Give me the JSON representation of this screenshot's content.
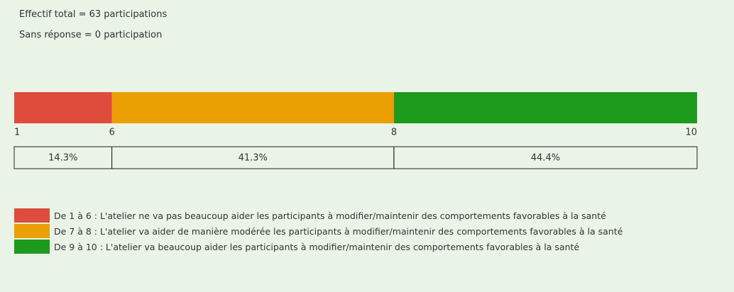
{
  "chart_data": {
    "type": "stacked_bar",
    "notes": [
      "Effectif total = 63 participations",
      "Sans réponse = 0 participation"
    ],
    "xlim": [
      0,
      100
    ],
    "boundaries": [
      "1",
      "6",
      "8",
      "10"
    ],
    "series": [
      {
        "name": "De 1 à 6 : L'atelier ne va pas beaucoup aider les participants à modifier/maintenir des comportements favorables à la santé",
        "color": "#e04c3b",
        "values": [
          14.3
        ],
        "value_labels": [
          "14.3%"
        ]
      },
      {
        "name": "De 7 à 8 : L'atelier va aider de manière modérée les participants à modifier/maintenir des comportements favorables à la santé",
        "color": "#eaa002",
        "values": [
          41.3
        ],
        "value_labels": [
          "41.3%"
        ]
      },
      {
        "name": "De 9 à 10 : L'atelier va beaucoup aider les participants à modifier/maintenir des comportements favorables à la santé",
        "color": "#1b9a1b",
        "values": [
          44.4
        ],
        "value_labels": [
          "44.4%"
        ]
      }
    ]
  }
}
